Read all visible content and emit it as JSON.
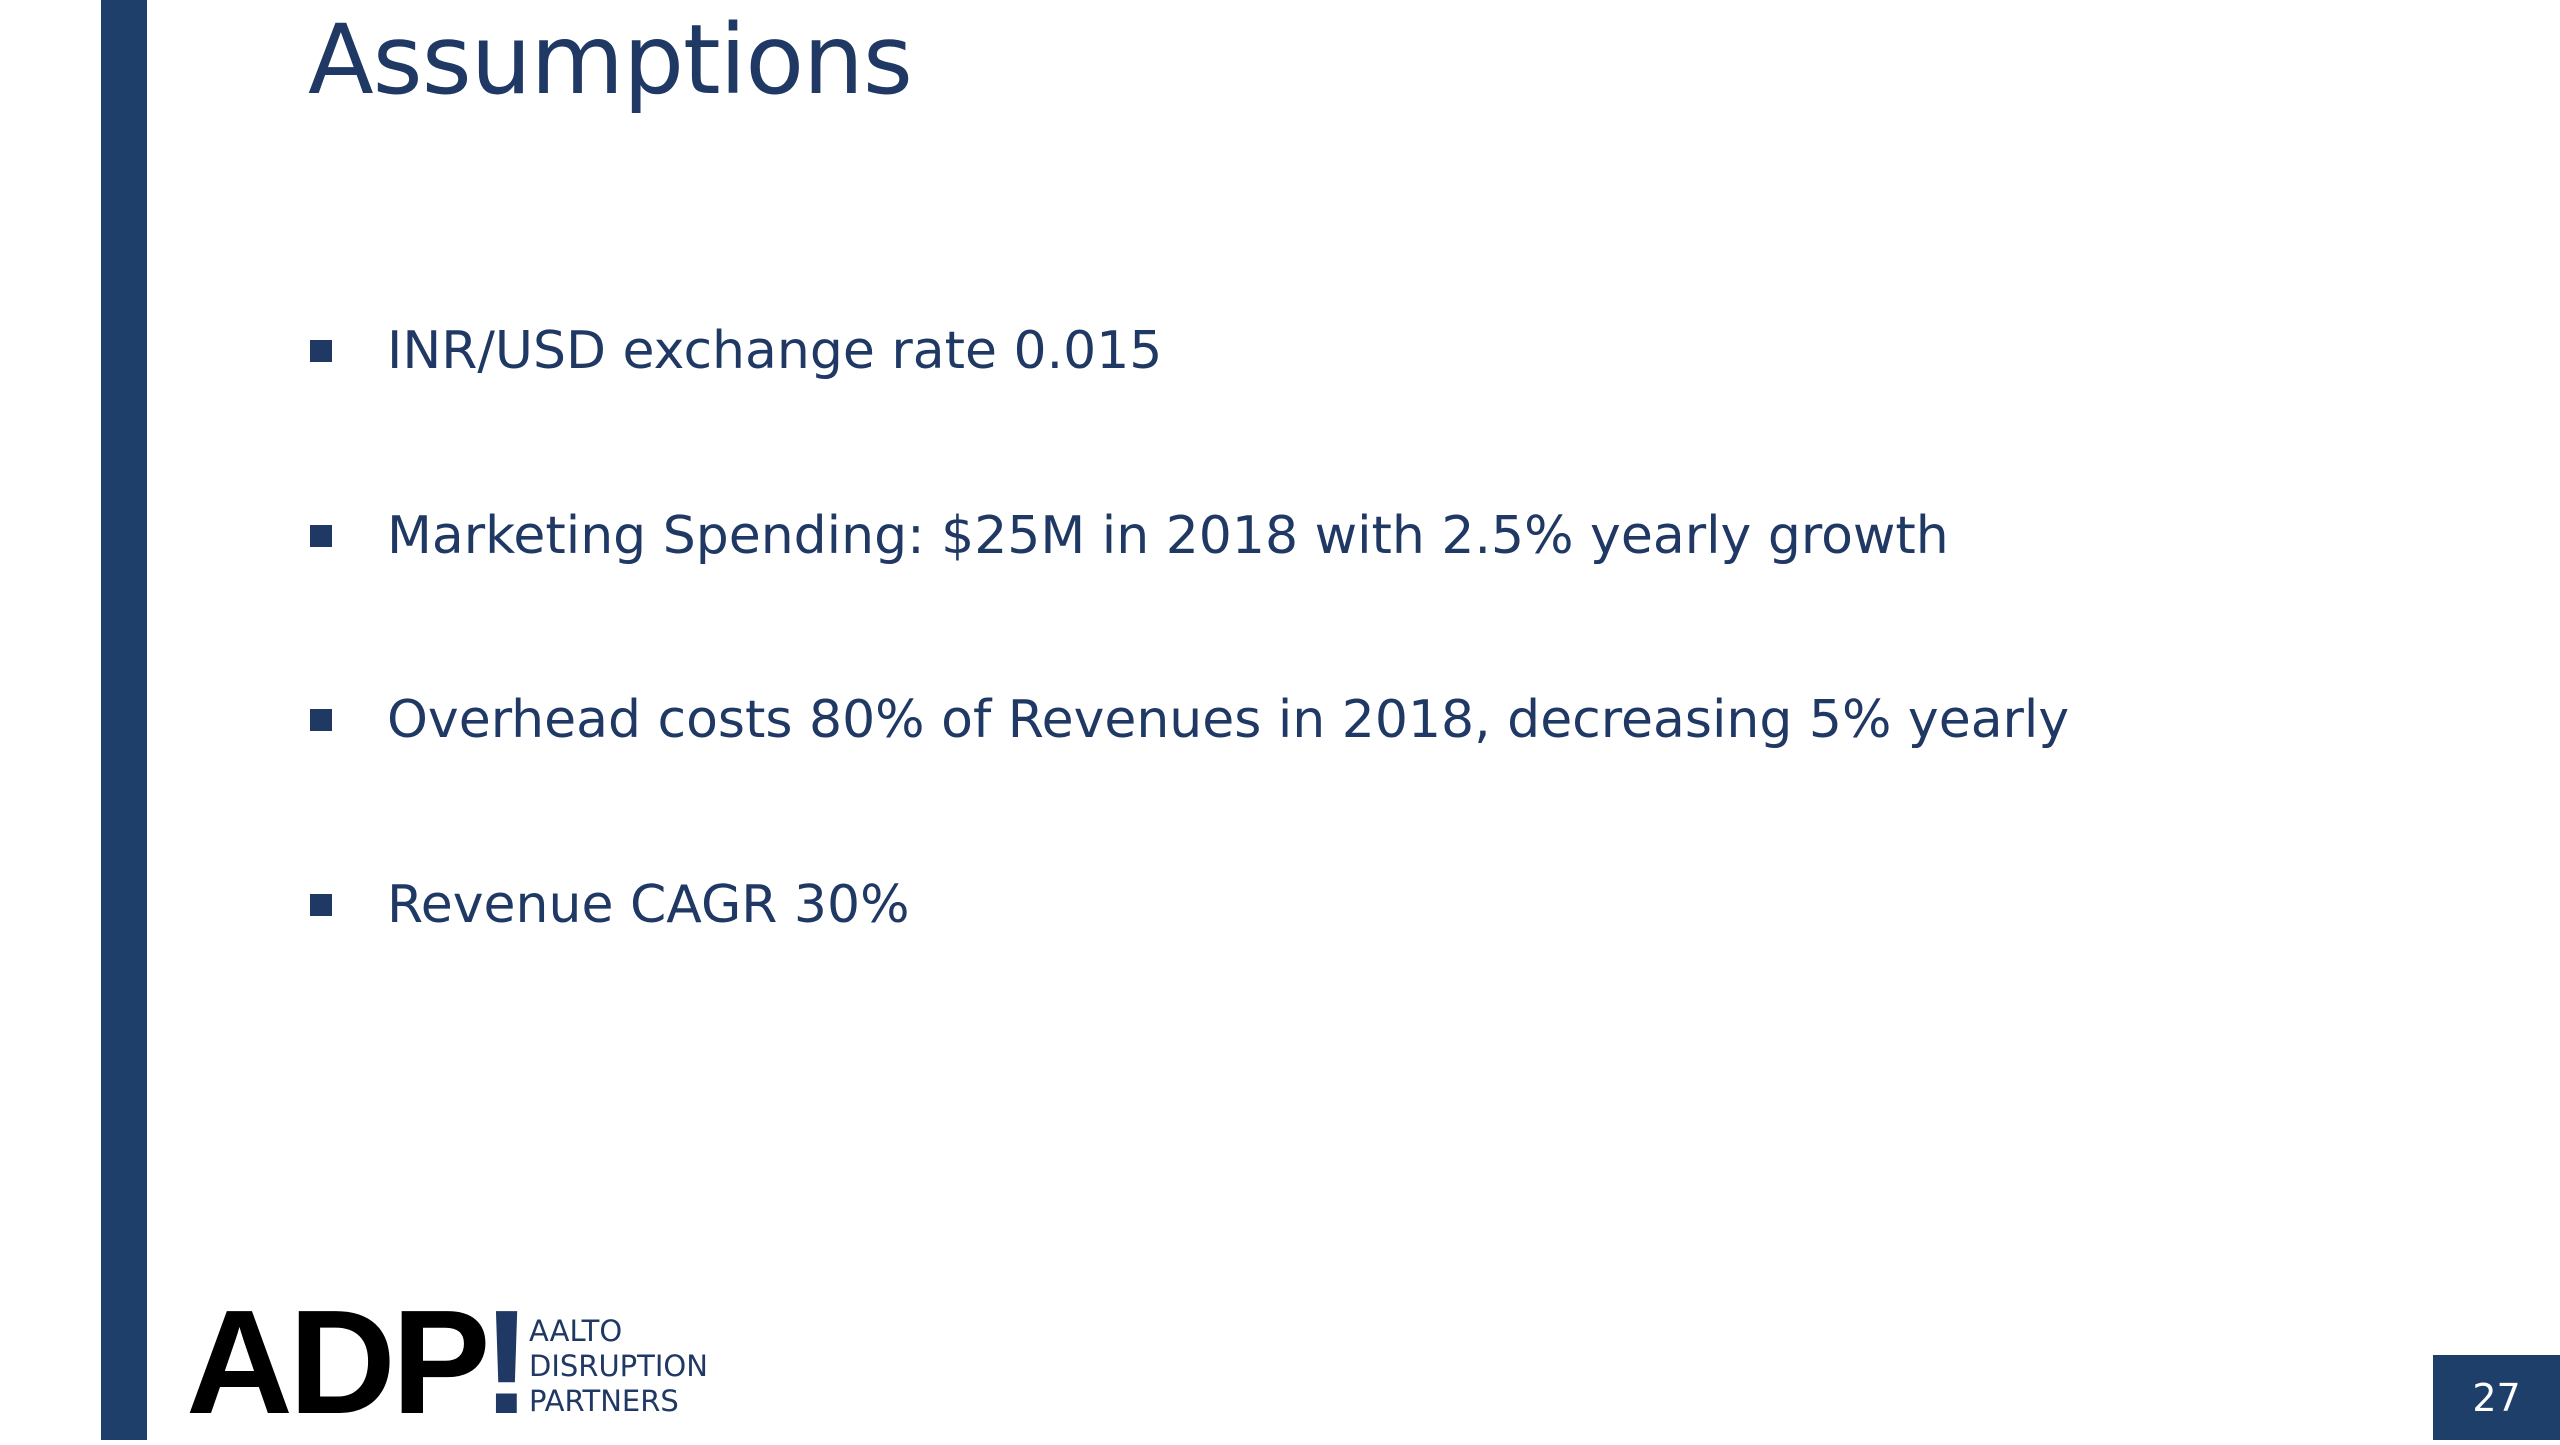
{
  "header": {
    "title": "Assumptions"
  },
  "bullets": [
    "INR/USD exchange rate 0.015",
    "Marketing Spending: $25M in 2018 with 2.5% yearly growth",
    "Overhead costs 80% of Revenues in 2018, decreasing 5% yearly",
    "Revenue CAGR 30%"
  ],
  "logo": {
    "letters": "ADP",
    "mark": "!",
    "lines": [
      "AALTO",
      "DISRUPTION",
      "PARTNERS"
    ]
  },
  "page_number": "27"
}
